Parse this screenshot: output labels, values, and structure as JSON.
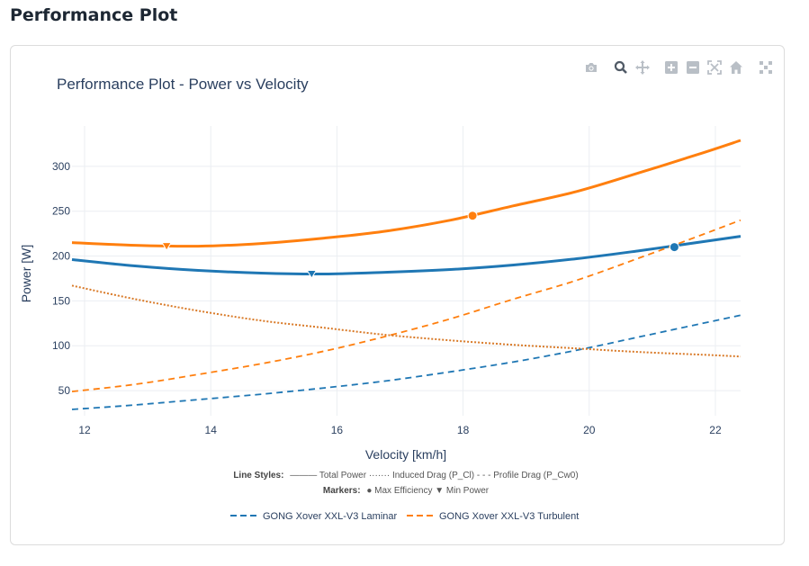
{
  "page": {
    "title": "Performance Plot"
  },
  "modebar": {
    "buttons": [
      {
        "name": "camera-icon",
        "label": "Download plot as png"
      },
      {
        "name": "zoom-icon",
        "label": "Zoom"
      },
      {
        "name": "pan-icon",
        "label": "Pan"
      },
      {
        "name": "zoom-in-icon",
        "label": "Zoom in"
      },
      {
        "name": "zoom-out-icon",
        "label": "Zoom out"
      },
      {
        "name": "autoscale-icon",
        "label": "Autoscale"
      },
      {
        "name": "home-icon",
        "label": "Reset axes"
      },
      {
        "name": "spike-icon",
        "label": "Toggle spike lines"
      }
    ]
  },
  "chart_data": {
    "type": "line",
    "title": "Performance Plot - Power vs Velocity",
    "xlabel": "Velocity [km/h]",
    "ylabel": "Power [W]",
    "xlim": [
      11.8,
      22.4
    ],
    "ylim": [
      22,
      345
    ],
    "xticks": [
      12,
      14,
      16,
      18,
      20,
      22
    ],
    "yticks": [
      50,
      100,
      150,
      200,
      250,
      300
    ],
    "grid": true,
    "legend_position": "bottom-center",
    "colors": {
      "laminar": "#1f77b4",
      "turbulent": "#ff7f0e",
      "induced": "#d97a28"
    },
    "x": [
      11.8,
      12.8,
      13.8,
      14.8,
      15.8,
      16.8,
      17.8,
      18.8,
      19.8,
      20.8,
      21.8,
      22.4
    ],
    "series": [
      {
        "name": "GONG Xover XXL-V3 Laminar",
        "component": "Total Power",
        "style": "solid",
        "color": "#1f77b4",
        "values": [
          196,
          189,
          184,
          181,
          180,
          182,
          185,
          190,
          197,
          206,
          216,
          222
        ]
      },
      {
        "name": "GONG Xover XXL-V3 Laminar",
        "component": "Profile Drag (P_Cw0)",
        "style": "dash",
        "color": "#1f77b4",
        "values": [
          29,
          34,
          40,
          46,
          53,
          61,
          71,
          82,
          95,
          110,
          125,
          134
        ]
      },
      {
        "name": "GONG Xover XXL-V3 Turbulent",
        "component": "Total Power",
        "style": "solid",
        "color": "#ff7f0e",
        "values": [
          215,
          212,
          211,
          214,
          220,
          228,
          240,
          256,
          272,
          293,
          315,
          329
        ]
      },
      {
        "name": "GONG Xover XXL-V3 Turbulent",
        "component": "Profile Drag (P_Cw0)",
        "style": "dash",
        "color": "#ff7f0e",
        "values": [
          49,
          57,
          68,
          80,
          94,
          111,
          130,
          152,
          173,
          198,
          224,
          240
        ]
      },
      {
        "name": "Induced Drag",
        "component": "Induced Drag (P_Cl)",
        "style": "dot",
        "color": "#d97a28",
        "values": [
          167,
          152,
          139,
          128,
          120,
          112,
          106,
          101,
          97,
          93,
          90,
          88
        ]
      }
    ],
    "markers": [
      {
        "series": "GONG Xover XXL-V3 Laminar",
        "type": "Max Efficiency",
        "symbol": "circle",
        "x": 21.35,
        "y": 210,
        "color": "#1f77b4"
      },
      {
        "series": "GONG Xover XXL-V3 Laminar",
        "type": "Min Power",
        "symbol": "triangle-down",
        "x": 15.6,
        "y": 180,
        "color": "#1f77b4"
      },
      {
        "series": "GONG Xover XXL-V3 Turbulent",
        "type": "Max Efficiency",
        "symbol": "circle",
        "x": 18.15,
        "y": 245,
        "color": "#ff7f0e"
      },
      {
        "series": "GONG Xover XXL-V3 Turbulent",
        "type": "Min Power",
        "symbol": "triangle-down",
        "x": 13.3,
        "y": 211,
        "color": "#ff7f0e"
      }
    ],
    "annotations": {
      "line_styles_label": "Line Styles:",
      "line_styles_text": "——— Total Power  ······· Induced Drag (P_Cl)  - - - Profile Drag (P_Cw0)",
      "markers_label": "Markers:",
      "markers_text": "● Max Efficiency  ▼ Min Power"
    },
    "legend": [
      {
        "name": "GONG Xover XXL-V3 Laminar",
        "color": "#1f77b4",
        "style": "dash"
      },
      {
        "name": "GONG Xover XXL-V3 Turbulent",
        "color": "#ff7f0e",
        "style": "dash"
      }
    ]
  }
}
